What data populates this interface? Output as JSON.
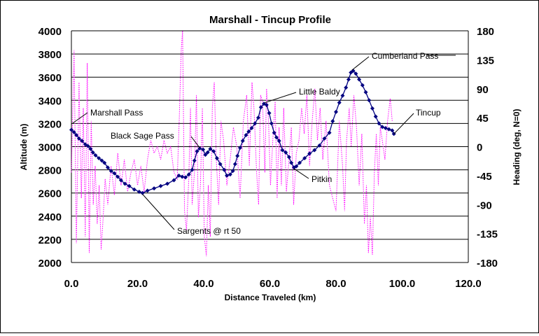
{
  "chart_data": {
    "type": "line",
    "title": "Marshall - Tincup Profile",
    "xlabel": "Distance Traveled (km)",
    "ylabel": "Altitude (m)",
    "y2label": "Heading (deg, N=0)",
    "xlim": [
      0,
      120
    ],
    "ylim": [
      2000,
      4000
    ],
    "y2lim": [
      -180,
      180
    ],
    "x_ticks": [
      "0.0",
      "20.0",
      "40.0",
      "60.0",
      "80.0",
      "100.0",
      "120.0"
    ],
    "y_ticks": [
      "2000",
      "2200",
      "2400",
      "2600",
      "2800",
      "3000",
      "3200",
      "3400",
      "3600",
      "3800",
      "4000"
    ],
    "y2_ticks": [
      "-180",
      "-135",
      "-90",
      "-45",
      "0",
      "45",
      "90",
      "135",
      "180"
    ],
    "grid": "horizontal",
    "colors": {
      "altitude": "#000080",
      "heading": "#ff00ff"
    },
    "series": [
      {
        "axis": "left",
        "style": "solid-diamond",
        "points": [
          [
            0,
            3145
          ],
          [
            0.8,
            3125
          ],
          [
            1.5,
            3100
          ],
          [
            2.3,
            3070
          ],
          [
            3.2,
            3050
          ],
          [
            4.2,
            3020
          ],
          [
            5.0,
            3005
          ],
          [
            5.8,
            2980
          ],
          [
            6.5,
            2950
          ],
          [
            7.3,
            2925
          ],
          [
            8.3,
            2900
          ],
          [
            9.2,
            2880
          ],
          [
            10.0,
            2860
          ],
          [
            11.0,
            2820
          ],
          [
            12.0,
            2790
          ],
          [
            13.0,
            2770
          ],
          [
            14.0,
            2740
          ],
          [
            15.0,
            2710
          ],
          [
            16.2,
            2680
          ],
          [
            17.5,
            2660
          ],
          [
            19.0,
            2630
          ],
          [
            20.5,
            2610
          ],
          [
            21.5,
            2600
          ],
          [
            23.0,
            2620
          ],
          [
            25.0,
            2640
          ],
          [
            27.0,
            2660
          ],
          [
            29.0,
            2680
          ],
          [
            31.0,
            2710
          ],
          [
            32.5,
            2750
          ],
          [
            33.5,
            2740
          ],
          [
            34.5,
            2735
          ],
          [
            35.5,
            2760
          ],
          [
            36.5,
            2800
          ],
          [
            37.2,
            2880
          ],
          [
            38.0,
            2960
          ],
          [
            38.8,
            2985
          ],
          [
            39.8,
            2975
          ],
          [
            40.5,
            2930
          ],
          [
            41.2,
            2950
          ],
          [
            42.0,
            2980
          ],
          [
            43.0,
            2960
          ],
          [
            44.0,
            2900
          ],
          [
            45.0,
            2850
          ],
          [
            46.2,
            2800
          ],
          [
            47.0,
            2750
          ],
          [
            48.0,
            2760
          ],
          [
            48.8,
            2790
          ],
          [
            49.5,
            2850
          ],
          [
            50.2,
            2920
          ],
          [
            51.0,
            2990
          ],
          [
            51.8,
            3050
          ],
          [
            52.8,
            3100
          ],
          [
            53.6,
            3130
          ],
          [
            54.5,
            3160
          ],
          [
            55.5,
            3200
          ],
          [
            56.5,
            3250
          ],
          [
            57.3,
            3340
          ],
          [
            58.2,
            3370
          ],
          [
            59.0,
            3360
          ],
          [
            59.8,
            3290
          ],
          [
            60.5,
            3200
          ],
          [
            61.3,
            3120
          ],
          [
            62.0,
            3080
          ],
          [
            62.8,
            3050
          ],
          [
            63.8,
            2970
          ],
          [
            64.8,
            2950
          ],
          [
            65.8,
            2910
          ],
          [
            66.5,
            2860
          ],
          [
            67.3,
            2820
          ],
          [
            68.0,
            2830
          ],
          [
            69.0,
            2860
          ],
          [
            70.5,
            2900
          ],
          [
            72.0,
            2940
          ],
          [
            73.5,
            2970
          ],
          [
            75.0,
            3010
          ],
          [
            76.5,
            3070
          ],
          [
            78.0,
            3120
          ],
          [
            79.0,
            3220
          ],
          [
            80.0,
            3300
          ],
          [
            81.0,
            3380
          ],
          [
            82.0,
            3440
          ],
          [
            83.0,
            3510
          ],
          [
            83.8,
            3580
          ],
          [
            84.5,
            3640
          ],
          [
            85.2,
            3655
          ],
          [
            86.0,
            3630
          ],
          [
            87.0,
            3580
          ],
          [
            88.0,
            3530
          ],
          [
            89.0,
            3470
          ],
          [
            90.0,
            3400
          ],
          [
            91.0,
            3330
          ],
          [
            92.0,
            3260
          ],
          [
            93.0,
            3200
          ],
          [
            94.0,
            3170
          ],
          [
            95.0,
            3160
          ],
          [
            96.0,
            3150
          ],
          [
            97.0,
            3140
          ],
          [
            97.5,
            3110
          ]
        ]
      },
      {
        "axis": "right",
        "style": "dotted",
        "points": [
          [
            0,
            -40
          ],
          [
            0.8,
            150
          ],
          [
            1.5,
            -150
          ],
          [
            2.3,
            100
          ],
          [
            3.0,
            -80
          ],
          [
            3.6,
            60
          ],
          [
            4.2,
            -140
          ],
          [
            4.8,
            130
          ],
          [
            5.4,
            -165
          ],
          [
            6.0,
            40
          ],
          [
            6.6,
            -90
          ],
          [
            7.2,
            -30
          ],
          [
            7.8,
            -120
          ],
          [
            8.4,
            -60
          ],
          [
            9.0,
            -160
          ],
          [
            9.6,
            -110
          ],
          [
            10.2,
            -50
          ],
          [
            11.0,
            -90
          ],
          [
            12.0,
            -30
          ],
          [
            13.0,
            -75
          ],
          [
            14.0,
            -10
          ],
          [
            15.0,
            -60
          ],
          [
            16.0,
            -20
          ],
          [
            17.0,
            -70
          ],
          [
            18.0,
            -40
          ],
          [
            19.0,
            -20
          ],
          [
            20.0,
            -60
          ],
          [
            21.0,
            -30
          ],
          [
            22.0,
            -70
          ],
          [
            23.0,
            -20
          ],
          [
            24.0,
            10
          ],
          [
            25.0,
            -10
          ],
          [
            26.0,
            0
          ],
          [
            27.0,
            -20
          ],
          [
            28.0,
            10
          ],
          [
            29.0,
            -10
          ],
          [
            30.0,
            0
          ],
          [
            31.0,
            -40
          ],
          [
            32.0,
            -50
          ],
          [
            32.6,
            40
          ],
          [
            33.2,
            150
          ],
          [
            33.6,
            180
          ],
          [
            34.2,
            -100
          ],
          [
            34.8,
            -130
          ],
          [
            35.5,
            -50
          ],
          [
            36.0,
            60
          ],
          [
            36.5,
            -90
          ],
          [
            37.2,
            -40
          ],
          [
            37.8,
            80
          ],
          [
            38.4,
            -110
          ],
          [
            39.0,
            -60
          ],
          [
            39.6,
            60
          ],
          [
            40.2,
            -140
          ],
          [
            40.8,
            -170
          ],
          [
            41.4,
            -60
          ],
          [
            42.0,
            -140
          ],
          [
            42.6,
            60
          ],
          [
            43.2,
            100
          ],
          [
            43.8,
            -20
          ],
          [
            44.5,
            -90
          ],
          [
            45.2,
            40
          ],
          [
            46.0,
            10
          ],
          [
            47.0,
            -60
          ],
          [
            48.0,
            -20
          ],
          [
            49.0,
            30
          ],
          [
            50.0,
            0
          ],
          [
            51.0,
            -80
          ],
          [
            52.0,
            40
          ],
          [
            53.0,
            80
          ],
          [
            53.8,
            -30
          ],
          [
            54.6,
            100
          ],
          [
            55.2,
            60
          ],
          [
            56.0,
            -40
          ],
          [
            56.6,
            -90
          ],
          [
            57.2,
            80
          ],
          [
            57.8,
            70
          ],
          [
            58.5,
            -40
          ],
          [
            59.0,
            90
          ],
          [
            59.6,
            40
          ],
          [
            60.2,
            -60
          ],
          [
            61.0,
            20
          ],
          [
            61.6,
            70
          ],
          [
            62.2,
            -80
          ],
          [
            62.8,
            30
          ],
          [
            63.5,
            -60
          ],
          [
            64.2,
            60
          ],
          [
            65.0,
            -70
          ],
          [
            65.8,
            -20
          ],
          [
            66.5,
            30
          ],
          [
            67.2,
            -90
          ],
          [
            68.0,
            -10
          ],
          [
            68.8,
            10
          ],
          [
            69.6,
            60
          ],
          [
            70.4,
            20
          ],
          [
            71.2,
            80
          ],
          [
            72.0,
            -30
          ],
          [
            72.8,
            40
          ],
          [
            73.6,
            90
          ],
          [
            74.4,
            10
          ],
          [
            75.2,
            60
          ],
          [
            76.0,
            -20
          ],
          [
            77.0,
            40
          ],
          [
            78.0,
            -60
          ],
          [
            79.0,
            -80
          ],
          [
            80.0,
            -100
          ],
          [
            81.0,
            40
          ],
          [
            82.0,
            -30
          ],
          [
            82.6,
            -100
          ],
          [
            83.2,
            10
          ],
          [
            84.0,
            60
          ],
          [
            84.6,
            0
          ],
          [
            85.4,
            80
          ],
          [
            86.2,
            30
          ],
          [
            87.0,
            -60
          ],
          [
            87.8,
            20
          ],
          [
            88.6,
            -120
          ],
          [
            89.2,
            -60
          ],
          [
            89.8,
            -165
          ],
          [
            90.4,
            -110
          ],
          [
            91.0,
            -168
          ],
          [
            91.6,
            -40
          ],
          [
            92.2,
            20
          ],
          [
            92.8,
            -60
          ],
          [
            93.4,
            30
          ],
          [
            94.0,
            10
          ],
          [
            94.8,
            -20
          ],
          [
            95.6,
            40
          ],
          [
            96.4,
            75
          ],
          [
            97.0,
            40
          ]
        ]
      }
    ],
    "annotations": [
      {
        "label": "Marshall Pass",
        "x": 0,
        "y": 3195
      },
      {
        "label": "Black Sage Pass",
        "x": 38.8,
        "y": 2990
      },
      {
        "label": "Sargents @ rt 50",
        "x": 21.5,
        "y": 2590
      },
      {
        "label": "Little Baldy",
        "x": 58.5,
        "y": 3380
      },
      {
        "label": "Pitkin",
        "x": 67.3,
        "y": 2810
      },
      {
        "label": "Cumberland Pass",
        "x": 84.8,
        "y": 3660
      },
      {
        "label": "Tincup",
        "x": 97.5,
        "y": 3110
      }
    ]
  }
}
